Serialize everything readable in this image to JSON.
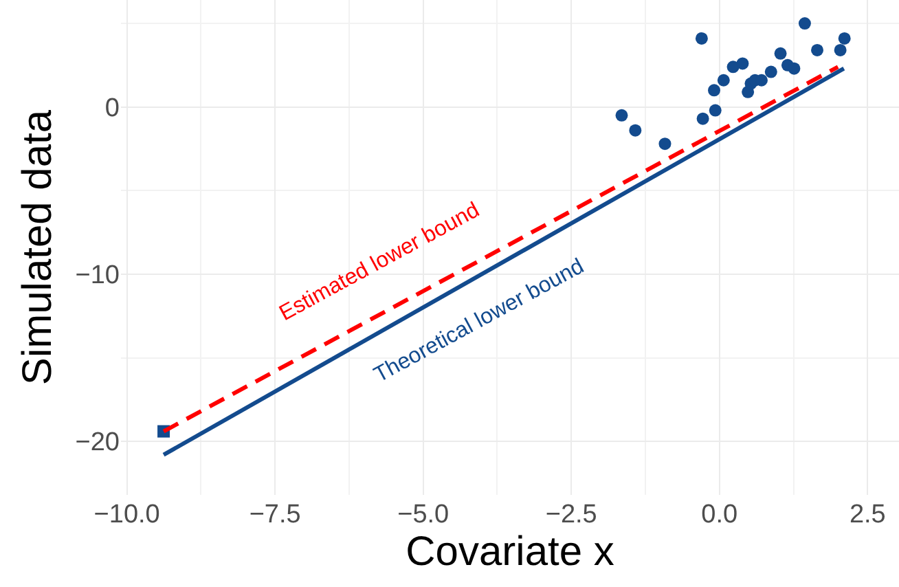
{
  "chart_data": {
    "type": "scatter",
    "xlabel": "Covariate x",
    "ylabel": "Simulated data",
    "xlim": [
      -10.1,
      3.03
    ],
    "ylim": [
      -23.2,
      6.4
    ],
    "xticks": [
      {
        "value": -10,
        "label": "−10.0"
      },
      {
        "value": -7.5,
        "label": "−7.5"
      },
      {
        "value": -5,
        "label": "−5.0"
      },
      {
        "value": -2.5,
        "label": "−2.5"
      },
      {
        "value": 0,
        "label": "0.0"
      },
      {
        "value": 2.5,
        "label": "2.5"
      }
    ],
    "yticks": [
      {
        "value": -20,
        "label": "−20"
      },
      {
        "value": -10,
        "label": "−10"
      },
      0
    ],
    "grid": true,
    "series": [
      {
        "marker": "circle",
        "color": "#134b8e",
        "x": [
          -1.65,
          -1.42,
          -0.92,
          -0.3,
          -0.28,
          -0.07,
          -0.09,
          0.07,
          0.23,
          0.39,
          0.48,
          0.53,
          0.6,
          0.71,
          0.87,
          1.03,
          1.15,
          1.26,
          1.44,
          1.65,
          2.04,
          2.11
        ],
        "values": [
          -0.5,
          -1.4,
          -2.2,
          4.1,
          -0.7,
          -0.2,
          1.0,
          1.6,
          2.4,
          2.6,
          0.9,
          1.4,
          1.6,
          1.6,
          2.1,
          3.2,
          2.5,
          2.3,
          5.0,
          3.4,
          3.4,
          4.1
        ]
      },
      {
        "marker": "square",
        "color": "#134b8e",
        "x": [
          -9.38
        ],
        "values": [
          -19.4
        ]
      },
      {
        "type": "line",
        "line_style": "dashed",
        "color": "#ff0000",
        "x": [
          -9.38,
          2.0
        ],
        "values": [
          -19.4,
          2.4
        ]
      },
      {
        "type": "line",
        "line_style": "solid",
        "color": "#134b8e",
        "x": [
          -9.38,
          2.1
        ],
        "values": [
          -20.8,
          2.3
        ]
      }
    ],
    "annotations": [
      "Estimated lower bound",
      "Theoretical lower bound"
    ]
  }
}
